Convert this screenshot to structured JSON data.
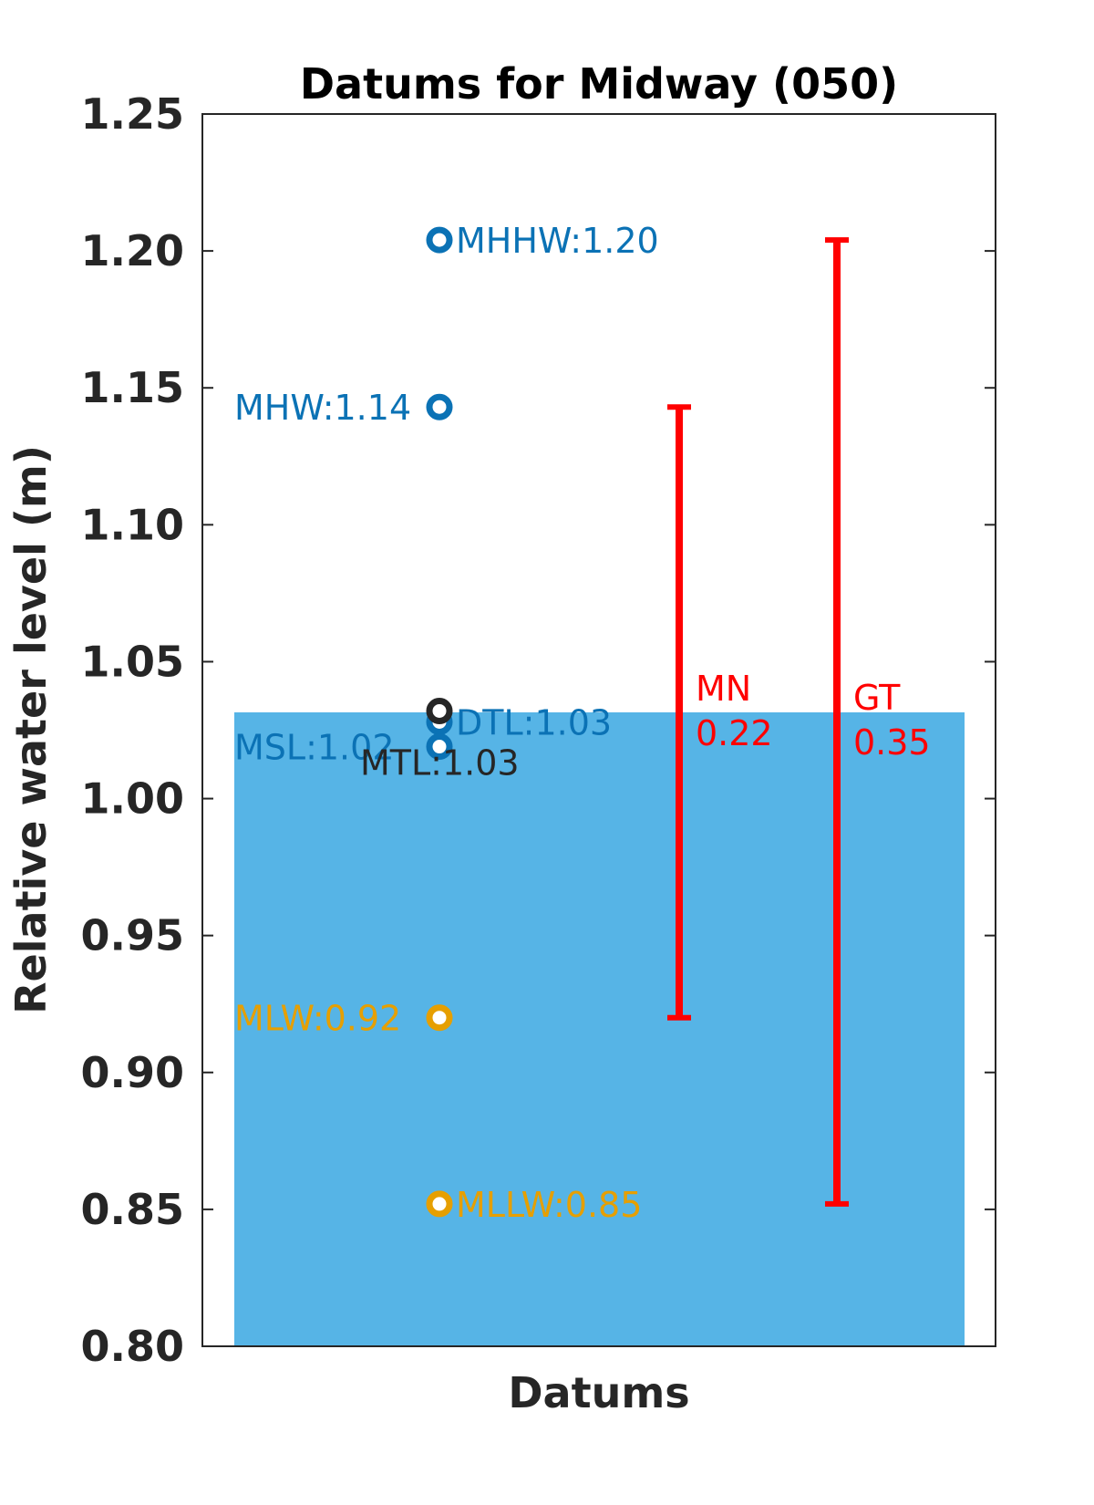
{
  "chart_data": {
    "type": "scatter",
    "title": "Datums for Midway (050)",
    "xlabel": "Datums",
    "ylabel": "Relative water level (m)",
    "ylim": [
      0.8,
      1.25
    ],
    "yticks": [
      0.8,
      0.85,
      0.9,
      0.95,
      1.0,
      1.05,
      1.1,
      1.15,
      1.2,
      1.25
    ],
    "ytick_labels": [
      "0.80",
      "0.85",
      "0.90",
      "0.95",
      "1.00",
      "1.05",
      "1.10",
      "1.15",
      "1.20",
      "1.25"
    ],
    "grid": false,
    "background_bar": {
      "value": 1.0315,
      "color": "#56b4e6"
    },
    "datums": [
      {
        "label": "MHHW:1.20",
        "value": 1.204,
        "color": "#0b72b5",
        "label_side": "right"
      },
      {
        "label": "MHW:1.14",
        "value": 1.143,
        "color": "#0b72b5",
        "label_side": "left"
      },
      {
        "label": "DTL:1.03",
        "value": 1.028,
        "color": "#0b72b5",
        "label_side": "right"
      },
      {
        "label": "MSL:1.02",
        "value": 1.019,
        "color": "#0b72b5",
        "label_side": "left"
      },
      {
        "label": "MTL:1.03",
        "value": 1.032,
        "color": "#262626",
        "label_side": "below"
      },
      {
        "label": "MLW:0.92",
        "value": 0.92,
        "color": "#e69f00",
        "label_side": "left"
      },
      {
        "label": "MLLW:0.85",
        "value": 0.852,
        "color": "#e69f00",
        "label_side": "right"
      }
    ],
    "ranges": [
      {
        "name": "MN",
        "value_label": "0.22",
        "low": 0.92,
        "high": 1.143,
        "color": "#ff0000"
      },
      {
        "name": "GT",
        "value_label": "0.35",
        "low": 0.852,
        "high": 1.204,
        "color": "#ff0000"
      }
    ]
  }
}
